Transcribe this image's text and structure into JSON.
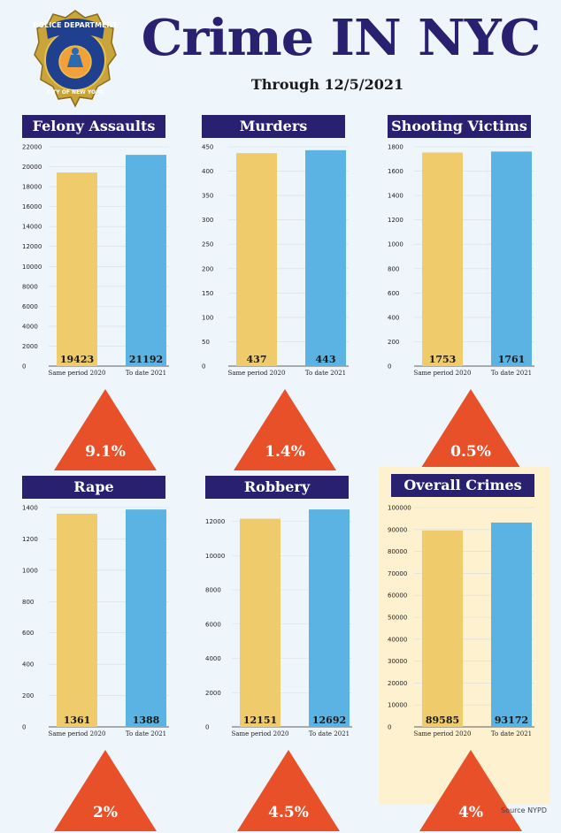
{
  "header": {
    "badge_text_top": "POLICE DEPARTMENT",
    "badge_text_bottom": "CITY OF NEW YORK",
    "title": "Crime IN NYC",
    "subtitle": "Through 12/5/2021"
  },
  "colors": {
    "navy": "#2a2070",
    "bar_2020": "#f0cb6c",
    "bar_2021": "#5bb3e4",
    "triangle": "#e8502a",
    "highlight": "#fdf1cf"
  },
  "source": "Source NYPD",
  "chart_data": [
    {
      "type": "bar",
      "title": "Felony Assaults",
      "categories": [
        "Same period 2020",
        "To date 2021"
      ],
      "values": [
        19423,
        21192
      ],
      "value_labels": [
        "19423",
        "21192"
      ],
      "yticks": [
        0,
        2000,
        4000,
        6000,
        8000,
        10000,
        12000,
        14000,
        16000,
        18000,
        20000,
        22000
      ],
      "ylim": [
        0,
        22000
      ],
      "change": "9.1%"
    },
    {
      "type": "bar",
      "title": "Murders",
      "categories": [
        "Same period 2020",
        "To date 2021"
      ],
      "values": [
        437,
        443
      ],
      "value_labels": [
        "437",
        "443"
      ],
      "yticks": [
        0,
        50,
        100,
        150,
        200,
        250,
        300,
        350,
        400,
        450
      ],
      "ylim": [
        0,
        450
      ],
      "change": "1.4%"
    },
    {
      "type": "bar",
      "title": "Shooting Victims",
      "categories": [
        "Same period 2020",
        "To date 2021"
      ],
      "values": [
        1753,
        1761
      ],
      "value_labels": [
        "1753",
        "1761"
      ],
      "yticks": [
        0,
        200,
        400,
        600,
        800,
        1000,
        1200,
        1400,
        1600,
        1800
      ],
      "ylim": [
        0,
        1800
      ],
      "change": "0.5%"
    },
    {
      "type": "bar",
      "title": "Rape",
      "categories": [
        "Same period 2020",
        "To date 2021"
      ],
      "values": [
        1361,
        1388
      ],
      "value_labels": [
        "1361",
        "1388"
      ],
      "yticks": [
        0,
        200,
        400,
        600,
        800,
        1000,
        1200,
        1400
      ],
      "ylim": [
        0,
        1400
      ],
      "change": "2%"
    },
    {
      "type": "bar",
      "title": "Robbery",
      "categories": [
        "Same period 2020",
        "To date 2021"
      ],
      "values": [
        12151,
        12692
      ],
      "value_labels": [
        "12151",
        "12692"
      ],
      "yticks": [
        0,
        2000,
        4000,
        6000,
        8000,
        10000,
        12000
      ],
      "ylim": [
        0,
        12800
      ],
      "change": "4.5%"
    },
    {
      "type": "bar",
      "title": "Overall Crimes",
      "categories": [
        "Same period 2020",
        "To date 2021"
      ],
      "values": [
        89585,
        93172
      ],
      "value_labels": [
        "89585",
        "93172"
      ],
      "yticks": [
        0,
        10000,
        20000,
        30000,
        40000,
        50000,
        60000,
        70000,
        80000,
        90000,
        100000
      ],
      "ylim": [
        0,
        100000
      ],
      "change": "4%",
      "highlighted": true
    }
  ]
}
